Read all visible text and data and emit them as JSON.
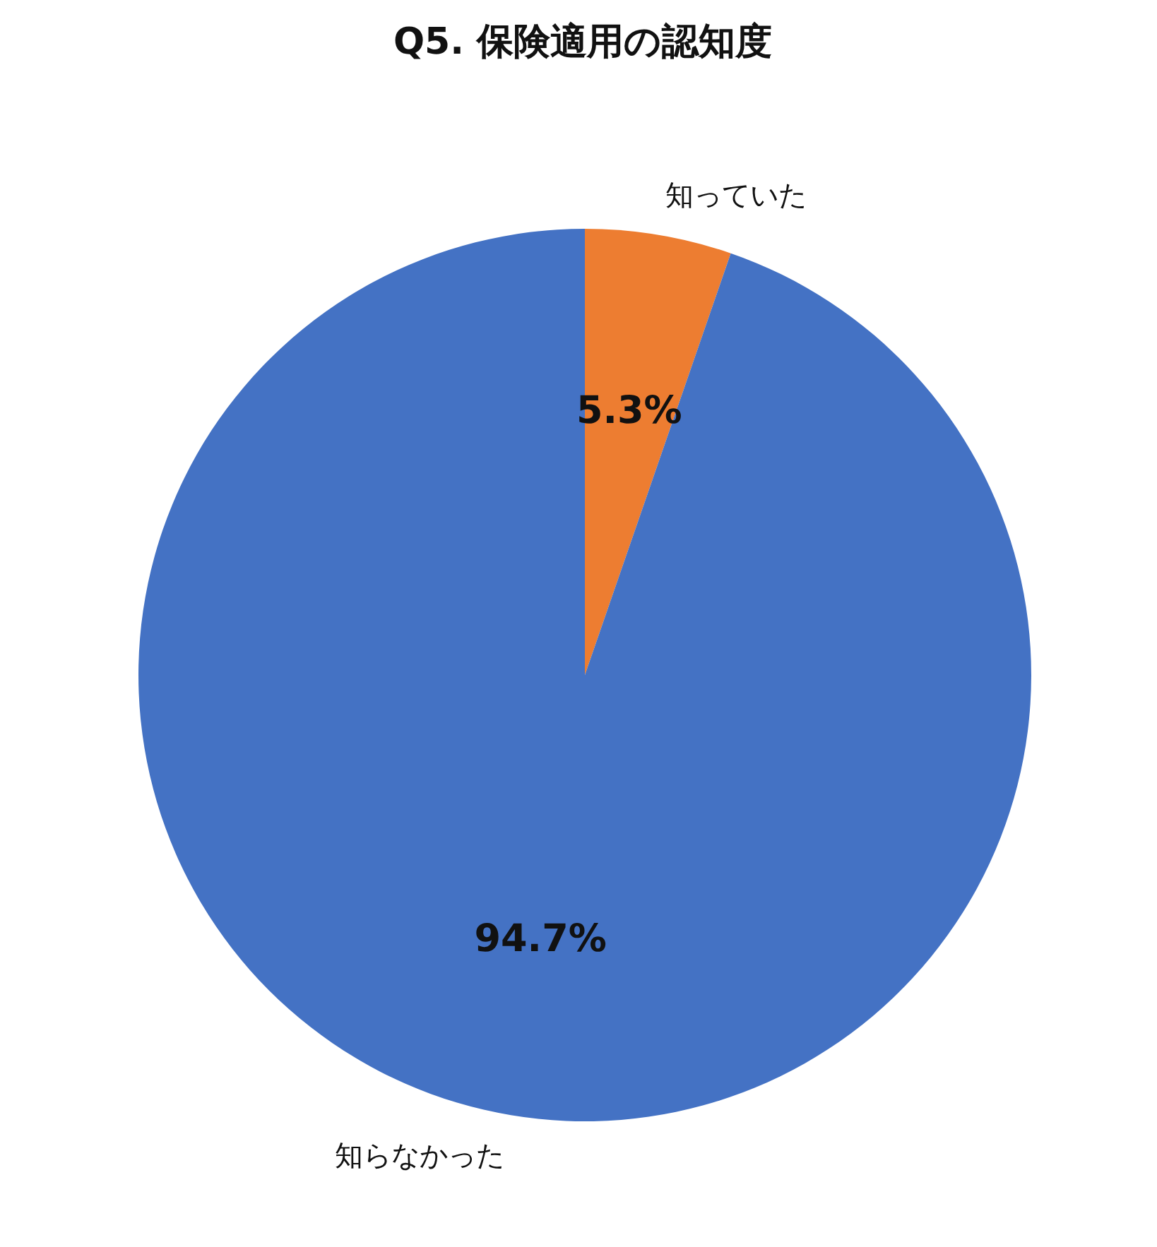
{
  "chart_data": {
    "type": "pie",
    "title": "Q5. 保険適用の認知度",
    "categories": [
      "知っていた",
      "知らなかった"
    ],
    "values": [
      5.3,
      94.7
    ],
    "colors": [
      "#ed7d31",
      "#4472c4"
    ],
    "value_labels": [
      "5.3%",
      "94.7%"
    ]
  }
}
